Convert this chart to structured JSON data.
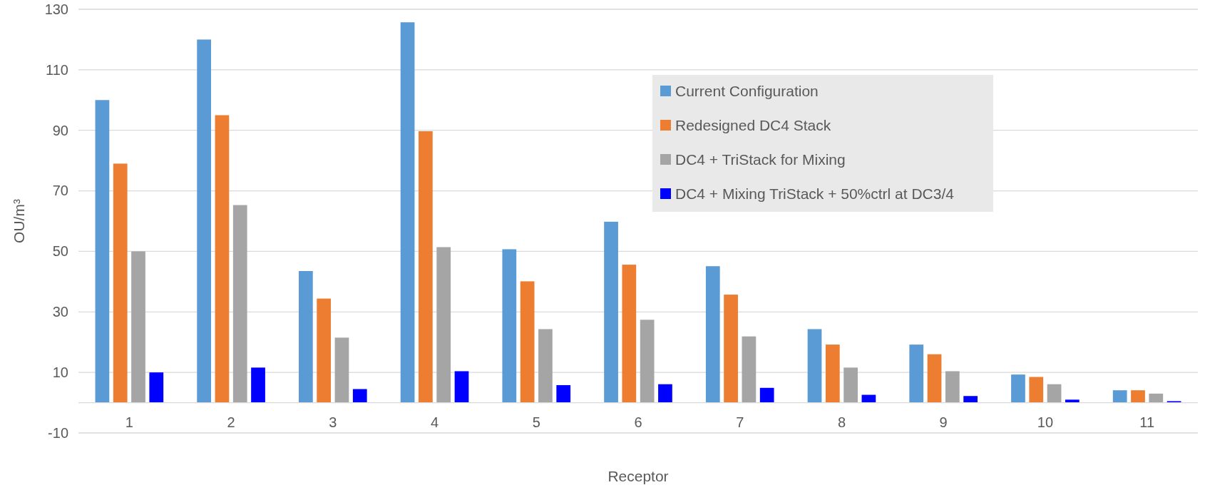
{
  "chart_data": {
    "type": "bar",
    "xlabel": "Receptor",
    "ylabel": "OU/m³",
    "categories": [
      "1",
      "2",
      "3",
      "4",
      "5",
      "6",
      "7",
      "8",
      "9",
      "10",
      "11"
    ],
    "series": [
      {
        "name": "Current Configuration",
        "color": "#5b9bd5",
        "values": [
          100,
          120,
          43.5,
          125.7,
          50.7,
          59.8,
          45.1,
          24.3,
          19.2,
          9.3,
          4.1
        ]
      },
      {
        "name": "Redesigned DC4 Stack",
        "color": "#ed7d31",
        "values": [
          79,
          95,
          34.4,
          89.7,
          40.1,
          45.6,
          35.7,
          19.2,
          16,
          8.5,
          4.1
        ]
      },
      {
        "name": "DC4 + TriStack for Mixing",
        "color": "#a5a5a5",
        "values": [
          50,
          65.3,
          21.5,
          51.4,
          24.3,
          27.4,
          21.9,
          11.6,
          10.4,
          6.1,
          3
        ]
      },
      {
        "name": "DC4 + Mixing TriStack + 50%ctrl at DC3/4",
        "color": "#0000ff",
        "values": [
          10,
          11.6,
          4.5,
          10.4,
          5.8,
          6.1,
          4.9,
          2.6,
          2.2,
          1,
          0.5
        ]
      }
    ],
    "ylim": [
      -10,
      130
    ],
    "yticks": [
      -10,
      10,
      30,
      50,
      70,
      90,
      110,
      130
    ],
    "grid": "y",
    "legend": "top right"
  }
}
